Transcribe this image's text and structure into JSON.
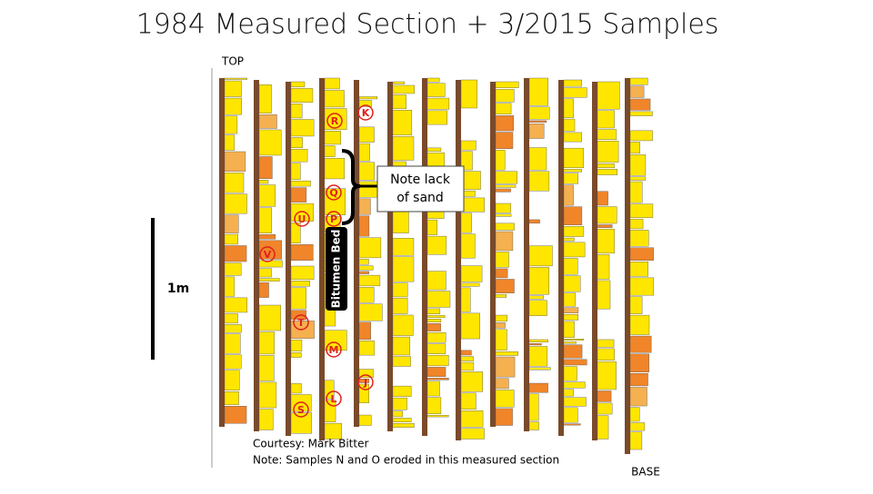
{
  "header": {
    "title": "1984 Measured Section + 3/2015 Samples"
  },
  "section": {
    "top_label": "TOP",
    "base_label": "BASE",
    "scale_label": "1m",
    "callout": [
      "Note lack",
      "of sand"
    ],
    "bitumen_label": "Bitumen Bed",
    "samples": [
      "K",
      "R",
      "Q",
      "P",
      "U",
      "V",
      "T",
      "M",
      "S",
      "L",
      "J"
    ]
  },
  "notes": [
    "Courtesy: Mark Bitter",
    "Note: Samples N and O eroded in this measured section"
  ]
}
